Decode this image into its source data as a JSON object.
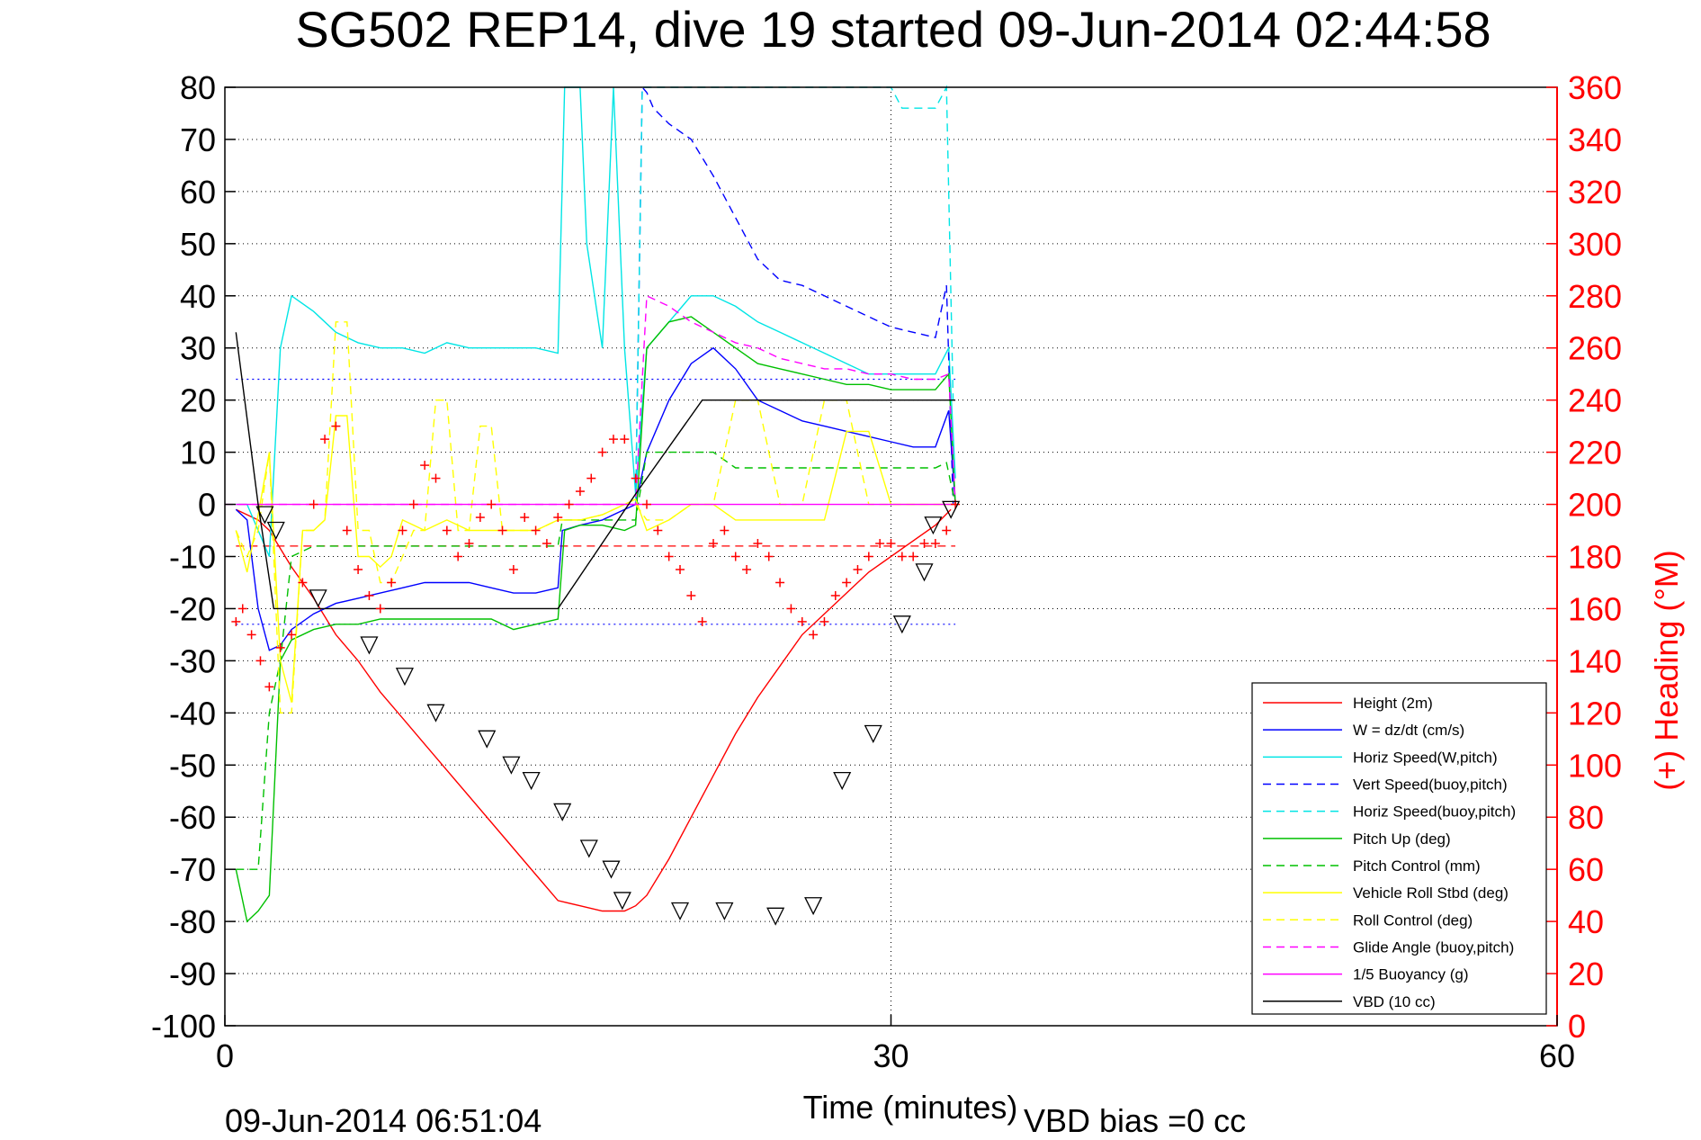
{
  "chart_data": {
    "type": "line",
    "title": "SG502 REP14, dive 19 started 09-Jun-2014 02:44:58",
    "xlabel": "Time (minutes)",
    "ylabel": "",
    "y2label": "(+) Heading (°M)",
    "xlim": [
      0,
      60
    ],
    "ylim": [
      -100,
      80
    ],
    "y2lim": [
      0,
      360
    ],
    "x_ticks": [
      0,
      30,
      60
    ],
    "y_ticks": [
      80,
      70,
      60,
      50,
      40,
      30,
      20,
      10,
      0,
      -10,
      -20,
      -30,
      -40,
      -50,
      -60,
      -70,
      -80,
      -90,
      -100
    ],
    "y2_ticks": [
      360,
      340,
      320,
      300,
      280,
      260,
      240,
      220,
      200,
      180,
      160,
      140,
      120,
      100,
      80,
      60,
      40,
      20,
      0
    ],
    "grid": true,
    "legend_position": "bottom-right",
    "footer_left": "09-Jun-2014 06:51:04",
    "footer_right": "VBD bias =0 cc",
    "colors": {
      "right_axis": "#ff0000"
    },
    "series": [
      {
        "name": "Height (2m)",
        "color": "#ff0000",
        "dash": "solid",
        "x": [
          0.5,
          1,
          1.5,
          2,
          3,
          4,
          5,
          6,
          7,
          8,
          9,
          10,
          11,
          12,
          13,
          14,
          15,
          16,
          17,
          18,
          18.5,
          19,
          20,
          21,
          22,
          23,
          24,
          25,
          26,
          27,
          28,
          29,
          30,
          31,
          32,
          32.7
        ],
        "y": [
          -1,
          -2,
          -3,
          -5,
          -12,
          -18,
          -25,
          -30,
          -36,
          -41,
          -46,
          -51,
          -56,
          -61,
          -66,
          -71,
          -76,
          -77,
          -78,
          -78,
          -77,
          -75,
          -68,
          -60,
          -52,
          -44,
          -37,
          -31,
          -25,
          -21,
          -17,
          -13,
          -10,
          -7,
          -4,
          -1
        ]
      },
      {
        "name": "W = dz/dt (cm/s)",
        "color": "#0000ff",
        "dash": "solid",
        "x": [
          0.5,
          1,
          1.5,
          2,
          2.5,
          3,
          4,
          5,
          6,
          7,
          8,
          9,
          10,
          11,
          12,
          13,
          14,
          15,
          15.2,
          16,
          17,
          18,
          18.5,
          19,
          20,
          21,
          22,
          23,
          24,
          25,
          26,
          27,
          28,
          29,
          30,
          31,
          32,
          32.6,
          32.9
        ],
        "y": [
          -1,
          -3,
          -20,
          -28,
          -27,
          -24,
          -21,
          -19,
          -18,
          -17,
          -16,
          -15,
          -15,
          -15,
          -16,
          -17,
          -17,
          -16,
          -5,
          -4,
          -3,
          -1,
          0,
          10,
          20,
          27,
          30,
          26,
          20,
          18,
          16,
          15,
          14,
          13,
          12,
          11,
          11,
          18,
          0
        ]
      },
      {
        "name": "Horiz Speed(W,pitch)",
        "color": "#00e5e5",
        "dash": "solid",
        "x": [
          0.5,
          1,
          1.5,
          2,
          2.5,
          3,
          4,
          5,
          6,
          7,
          8,
          9,
          10,
          11,
          12,
          13,
          14,
          15,
          15.3,
          16,
          16.3,
          17,
          17.5,
          18,
          18.5,
          19,
          20,
          21,
          22,
          23,
          24,
          25,
          26,
          27,
          28,
          29,
          30,
          31,
          32,
          32.6,
          32.9
        ],
        "y": [
          0,
          0,
          -5,
          -10,
          30,
          40,
          37,
          33,
          31,
          30,
          30,
          29,
          31,
          30,
          30,
          30,
          30,
          29,
          80,
          80,
          50,
          30,
          80,
          30,
          2,
          30,
          35,
          40,
          40,
          38,
          35,
          33,
          31,
          29,
          27,
          25,
          25,
          25,
          25,
          30,
          5
        ]
      },
      {
        "name": "Vert Speed(buoy,pitch)",
        "color": "#0000ff",
        "dash": "dashed",
        "x": [
          18.5,
          18.8,
          19,
          19.3,
          20,
          21,
          22,
          23,
          24,
          25,
          26,
          27,
          28,
          29,
          30,
          31,
          32,
          32.5,
          32.8
        ],
        "y": [
          0,
          80,
          79,
          76,
          73,
          70,
          63,
          55,
          47,
          43,
          42,
          40,
          38,
          36,
          34,
          33,
          32,
          42,
          0
        ]
      },
      {
        "name": "Horiz Speed(buoy,pitch)",
        "color": "#00e5e5",
        "dash": "dashed",
        "x": [
          18.5,
          18.8,
          30,
          30.5,
          32,
          32.5,
          32.8
        ],
        "y": [
          0,
          80,
          80,
          76,
          76,
          80,
          20
        ]
      },
      {
        "name": "Pitch Up (deg)",
        "color": "#00c000",
        "dash": "solid",
        "x": [
          0.5,
          1,
          1.5,
          2,
          2.5,
          3,
          4,
          5,
          6,
          7,
          8,
          9,
          10,
          11,
          12,
          13,
          14,
          15,
          15.3,
          16,
          17,
          18,
          18.5,
          19,
          20,
          21,
          22,
          23,
          24,
          25,
          26,
          27,
          28,
          29,
          30,
          31,
          32,
          32.6,
          32.9
        ],
        "y": [
          -70,
          -80,
          -78,
          -75,
          -30,
          -26,
          -24,
          -23,
          -23,
          -22,
          -22,
          -22,
          -22,
          -22,
          -22,
          -24,
          -23,
          -22,
          -5,
          -4,
          -4,
          -5,
          -4,
          30,
          35,
          36,
          33,
          30,
          27,
          26,
          25,
          24,
          23,
          23,
          22,
          22,
          22,
          25,
          0
        ]
      },
      {
        "name": "Pitch Control (mm)",
        "color": "#00c000",
        "dash": "dashed",
        "x": [
          0.5,
          1,
          1.5,
          2,
          2.5,
          3,
          4,
          5,
          6,
          7,
          8,
          9,
          10,
          11,
          12,
          13,
          14,
          15,
          15.2,
          16,
          17,
          18,
          18.5,
          19,
          20,
          21,
          22,
          23,
          24,
          25,
          26,
          27,
          28,
          29,
          30,
          31,
          32,
          32.5,
          32.9
        ],
        "y": [
          -70,
          -70,
          -70,
          -40,
          -30,
          -10,
          -8,
          -8,
          -8,
          -8,
          -8,
          -8,
          -8,
          -8,
          -8,
          -8,
          -8,
          -8,
          -3,
          -3,
          -3,
          -3,
          -3,
          10,
          10,
          10,
          10,
          7,
          7,
          7,
          7,
          7,
          7,
          7,
          7,
          7,
          7,
          8,
          0
        ]
      },
      {
        "name": "Vehicle Roll Stbd (deg)",
        "color": "#ffff00",
        "dash": "solid",
        "x": [
          0.5,
          1,
          1.5,
          2,
          2.5,
          3,
          3.5,
          4,
          4.5,
          5,
          5.5,
          6,
          6.5,
          7,
          7.5,
          8,
          9,
          10,
          11,
          12,
          13,
          14,
          15,
          16,
          17,
          18,
          18.5,
          19,
          20,
          21,
          22,
          23,
          24,
          25,
          26,
          27,
          28,
          29,
          30,
          31,
          32,
          32.5,
          32.9
        ],
        "y": [
          -5,
          -13,
          -2,
          10,
          -30,
          -38,
          -5,
          -5,
          -3,
          17,
          17,
          -10,
          -10,
          -12,
          -10,
          -3,
          -5,
          -3,
          -5,
          -5,
          -5,
          -5,
          -3,
          -3,
          -2,
          0,
          1,
          -5,
          -3,
          0,
          0,
          -3,
          -3,
          -3,
          -3,
          -3,
          14,
          14,
          0,
          0,
          0,
          0,
          0
        ]
      },
      {
        "name": "Roll Control (deg)",
        "color": "#ffff00",
        "dash": "dashed",
        "x": [
          0.5,
          1,
          1.5,
          2,
          2.5,
          3,
          3.5,
          4,
          4.5,
          5,
          5.5,
          6,
          6.5,
          7,
          7.5,
          8,
          8.5,
          9,
          9.5,
          10,
          10.5,
          11,
          11.5,
          12,
          12.5,
          13,
          14,
          15,
          16,
          17,
          18,
          18.5,
          19,
          20,
          21,
          22,
          23,
          24,
          25,
          26,
          27,
          28,
          29,
          30,
          31,
          32,
          32.5,
          32.9
        ],
        "y": [
          -5,
          -10,
          -5,
          10,
          -40,
          -40,
          -5,
          -5,
          -3,
          35,
          35,
          -5,
          -5,
          -15,
          -15,
          -10,
          -5,
          -5,
          20,
          20,
          -5,
          -5,
          15,
          15,
          -5,
          -5,
          -5,
          -3,
          -3,
          -2,
          0,
          0,
          -3,
          -3,
          0,
          0,
          20,
          20,
          0,
          0,
          20,
          20,
          0,
          0,
          0,
          0,
          0,
          0
        ]
      },
      {
        "name": "Glide Angle (buoy,pitch)",
        "color": "#ff00ff",
        "dash": "dashed",
        "x": [
          0,
          2,
          4,
          6,
          8,
          10,
          12,
          14,
          16,
          18,
          18.5,
          19,
          20,
          21,
          22,
          23,
          24,
          25,
          26,
          27,
          28,
          29,
          30,
          31,
          32,
          32.6,
          32.9
        ],
        "y": [
          0,
          0,
          0,
          0,
          0,
          0,
          0,
          0,
          0,
          0,
          0,
          40,
          38,
          35,
          33,
          31,
          30,
          28,
          27,
          26,
          26,
          25,
          25,
          24,
          24,
          25,
          0
        ]
      },
      {
        "name": "1/5 Buoyancy (g)",
        "color": "#ff00ff",
        "dash": "solid",
        "x": [
          0.5,
          32.9
        ],
        "y": [
          0,
          0
        ]
      },
      {
        "name": "VBD (10 cc)",
        "color": "#000000",
        "dash": "solid",
        "x": [
          0.5,
          1.5,
          2.2,
          4,
          6,
          8,
          10,
          12,
          14,
          15,
          18.5,
          21.5,
          24,
          26,
          28,
          30,
          32,
          32.9
        ],
        "y": [
          33,
          0,
          -20,
          -20,
          -20,
          -20,
          -20,
          -20,
          -20,
          -20,
          2,
          20,
          20,
          20,
          20,
          20,
          20,
          20
        ]
      }
    ],
    "reference_lines": [
      {
        "axis": "y",
        "value": -8,
        "color": "#ff0000",
        "dash": "dashed",
        "xlim": [
          0.5,
          32.9
        ]
      },
      {
        "axis": "y",
        "value": -23,
        "color": "#0000ff",
        "dash": "dotted",
        "xlim": [
          0.5,
          32.9
        ]
      },
      {
        "axis": "y",
        "value": 24,
        "color": "#0000ff",
        "dash": "dotted",
        "xlim": [
          0.5,
          32.9
        ]
      }
    ],
    "heading": {
      "color": "#ff0000",
      "marker": "+",
      "axis": "right",
      "x": [
        0.5,
        0.8,
        1.2,
        1.6,
        2,
        2.5,
        3,
        3.5,
        4,
        4.5,
        5,
        5.5,
        6,
        6.5,
        7,
        7.5,
        8,
        8.5,
        9,
        9.5,
        10,
        10.5,
        11,
        11.5,
        12,
        12.5,
        13,
        13.5,
        14,
        14.5,
        15,
        15.5,
        16,
        16.5,
        17,
        17.5,
        18,
        18.5,
        19,
        19.5,
        20,
        20.5,
        21,
        21.5,
        22,
        22.5,
        23,
        23.5,
        24,
        24.5,
        25,
        25.5,
        26,
        26.5,
        27,
        27.5,
        28,
        28.5,
        29,
        29.5,
        30,
        30.5,
        31,
        31.5,
        32,
        32.5,
        32.9
      ],
      "y": [
        155,
        160,
        150,
        140,
        130,
        145,
        150,
        170,
        200,
        225,
        230,
        190,
        175,
        165,
        160,
        170,
        190,
        200,
        215,
        210,
        190,
        180,
        185,
        195,
        200,
        190,
        175,
        195,
        190,
        185,
        195,
        200,
        205,
        210,
        220,
        225,
        225,
        210,
        200,
        190,
        180,
        175,
        165,
        155,
        185,
        190,
        180,
        175,
        185,
        180,
        170,
        160,
        155,
        150,
        155,
        165,
        170,
        175,
        180,
        185,
        185,
        180,
        180,
        185,
        185,
        190,
        200
      ]
    },
    "triangles": {
      "color": "#000000",
      "x": [
        1.8,
        2.3,
        4.2,
        6.5,
        8.1,
        9.5,
        11.8,
        12.9,
        13.8,
        15.2,
        16.4,
        17.4,
        17.9,
        20.5,
        22.5,
        24.8,
        26.5,
        27.8,
        29.2,
        30.5,
        31.5,
        31.9,
        32.7
      ],
      "y": [
        -2,
        -5,
        -18,
        -27,
        -33,
        -40,
        -45,
        -50,
        -53,
        -59,
        -66,
        -70,
        -76,
        -78,
        -78,
        -79,
        -77,
        -53,
        -44,
        -23,
        -13,
        -4,
        -1
      ]
    }
  }
}
